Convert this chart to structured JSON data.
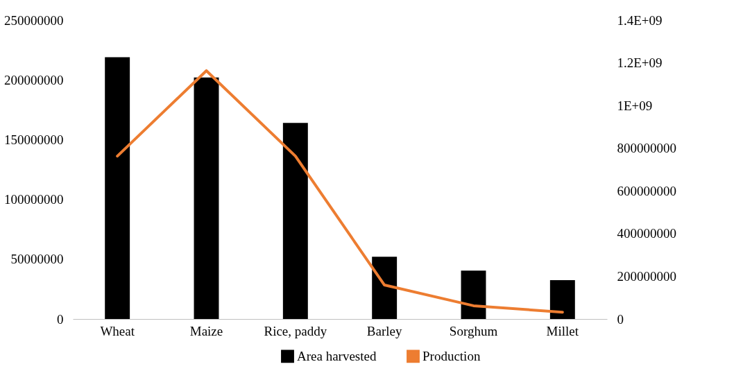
{
  "chart_data": {
    "type": "bar",
    "categories": [
      "Wheat",
      "Maize",
      "Rice, paddy",
      "Barley",
      "Sorghum",
      "Millet"
    ],
    "series": [
      {
        "name": "Area harvested",
        "color": "#000000",
        "values": [
          219000000,
          202000000,
          164000000,
          52000000,
          40500000,
          32500000
        ]
      },
      {
        "name": "Production",
        "type": "line",
        "axis": "y2",
        "color": "#ed7d31",
        "values": [
          763000000,
          1163000000,
          763000000,
          159000000,
          62000000,
          32000000
        ]
      }
    ],
    "ylim": [
      0,
      250000000
    ],
    "yticks": [
      0,
      50000000,
      100000000,
      150000000,
      200000000,
      250000000
    ],
    "y2lim": [
      0,
      1400000000
    ],
    "y2ticks": [
      0,
      200000000,
      400000000,
      600000000,
      800000000,
      {
        "value": 1000000000,
        "label": "1E+09"
      },
      {
        "value": 1200000000,
        "label": "1.2E+09"
      },
      {
        "value": 1400000000,
        "label": "1.4E+09"
      }
    ],
    "grid": false,
    "legend": "bottom",
    "marker": "none",
    "line_style": "solid"
  }
}
